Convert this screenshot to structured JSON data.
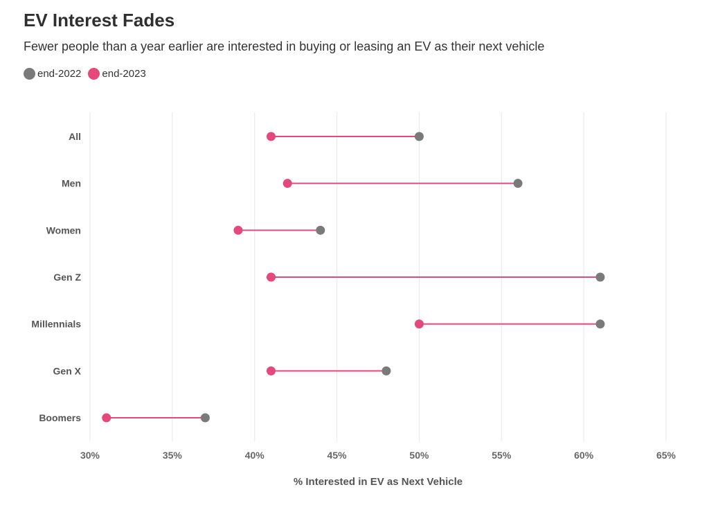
{
  "chart_data": {
    "type": "dumbbell",
    "title": "EV Interest Fades",
    "subtitle": "Fewer people than a year earlier are interested in buying or leasing an EV as their next vehicle",
    "xlabel": "% Interested in EV as Next Vehicle",
    "ylabel": "",
    "xlim": [
      30,
      65
    ],
    "x_ticks": [
      30,
      35,
      40,
      45,
      50,
      55,
      60,
      65
    ],
    "x_tick_labels": [
      "30%",
      "35%",
      "40%",
      "45%",
      "50%",
      "55%",
      "60%",
      "65%"
    ],
    "grid": "vertical",
    "legend_placement": "top-left",
    "categories": [
      "All",
      "Men",
      "Women",
      "Gen Z",
      "Millennials",
      "Gen X",
      "Boomers"
    ],
    "series": [
      {
        "name": "end-2022",
        "color": "#7a7a7a",
        "values": [
          50,
          56,
          44,
          61,
          61,
          48,
          37
        ]
      },
      {
        "name": "end-2023",
        "color": "#e5487a",
        "values": [
          41,
          42,
          39,
          41,
          50,
          41,
          31
        ]
      }
    ],
    "connector_color": "#e5487a"
  }
}
